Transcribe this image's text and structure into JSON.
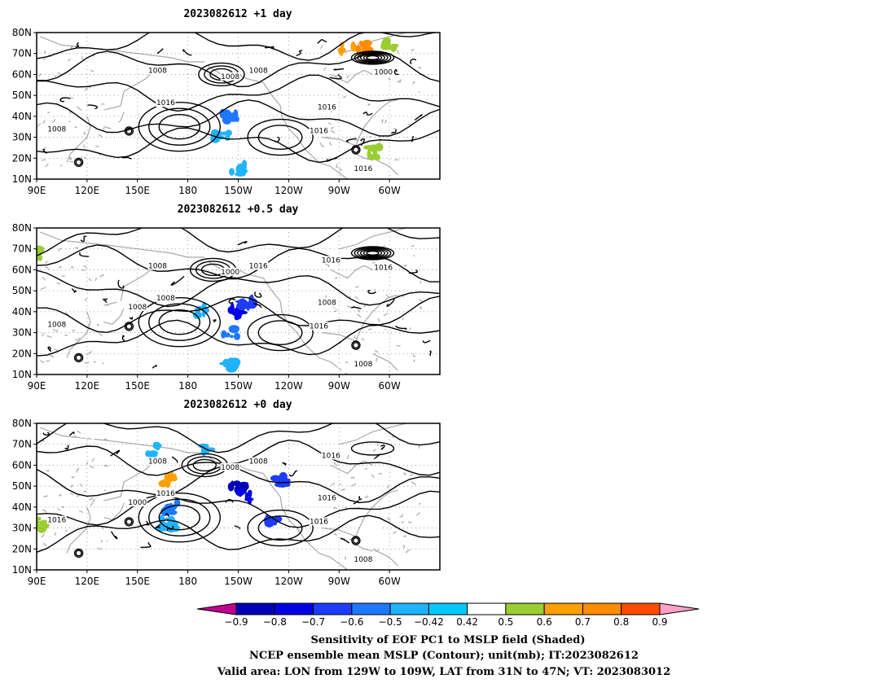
{
  "panels": [
    {
      "title": "2023082612  +1 day",
      "contour_labels": [
        "1008",
        "1008",
        "1016",
        "1000",
        "1016",
        "1016",
        "1008",
        "1008",
        "1016"
      ],
      "shading": [
        {
          "lon": -155,
          "lat": 40,
          "value": -0.5
        },
        {
          "lon": -160,
          "lat": 30,
          "value": -0.45
        },
        {
          "lon": -150,
          "lat": 15,
          "value": -0.45
        },
        {
          "lon": -155,
          "lat": 60,
          "value": 0.5
        },
        {
          "lon": -85,
          "lat": 72,
          "value": 0.7
        },
        {
          "lon": -75,
          "lat": 73,
          "value": 0.8
        },
        {
          "lon": -60,
          "lat": 75,
          "value": 0.6
        },
        {
          "lon": -50,
          "lat": 74,
          "value": 0.5
        },
        {
          "lon": -70,
          "lat": 23,
          "value": 0.6
        },
        {
          "lon": 140,
          "lat": 35,
          "value": 0.5
        }
      ]
    },
    {
      "title": "2023082612  +0.5 day",
      "contour_labels": [
        "1008",
        "1016",
        "1008",
        "1016",
        "1000",
        "1016",
        "1008",
        "1016",
        "1008",
        "1008",
        "1008"
      ],
      "shading": [
        {
          "lon": -150,
          "lat": 40,
          "value": -0.7
        },
        {
          "lon": -145,
          "lat": 45,
          "value": -0.6
        },
        {
          "lon": -155,
          "lat": 30,
          "value": -0.5
        },
        {
          "lon": -155,
          "lat": 15,
          "value": -0.45
        },
        {
          "lon": -170,
          "lat": 40,
          "value": -0.45
        },
        {
          "lon": 92,
          "lat": 68,
          "value": 0.6
        },
        {
          "lon": -75,
          "lat": 20,
          "value": 0.5
        },
        {
          "lon": -85,
          "lat": 12,
          "value": 0.5
        },
        {
          "lon": 140,
          "lat": 42,
          "value": 0.5
        }
      ]
    },
    {
      "title": "2023082612  +0 day",
      "contour_labels": [
        "1016",
        "1016",
        "1008",
        "1008",
        "1008",
        "1016",
        "1000",
        "1008",
        "1016",
        "1016"
      ],
      "shading": [
        {
          "lon": -150,
          "lat": 50,
          "value": -0.8
        },
        {
          "lon": -145,
          "lat": 45,
          "value": -0.7
        },
        {
          "lon": -130,
          "lat": 33,
          "value": -0.6
        },
        {
          "lon": -125,
          "lat": 52,
          "value": -0.6
        },
        {
          "lon": 170,
          "lat": 40,
          "value": -0.5
        },
        {
          "lon": 168,
          "lat": 32,
          "value": -0.45
        },
        {
          "lon": 160,
          "lat": 67,
          "value": -0.45
        },
        {
          "lon": -170,
          "lat": 68,
          "value": -0.45
        },
        {
          "lon": 168,
          "lat": 53,
          "value": 0.7
        },
        {
          "lon": 120,
          "lat": 76,
          "value": 0.5
        },
        {
          "lon": -70,
          "lat": 28,
          "value": 0.5
        },
        {
          "lon": 92,
          "lat": 32,
          "value": 0.6
        }
      ]
    }
  ],
  "axes": {
    "lon_ticks": [
      "90E",
      "120E",
      "150E",
      "180",
      "150W",
      "120W",
      "90W",
      "60W"
    ],
    "lat_ticks": [
      "80N",
      "70N",
      "60N",
      "50N",
      "40N",
      "30N",
      "20N",
      "10N"
    ]
  },
  "colorbar": {
    "tick_labels": [
      "−0.9",
      "−0.8",
      "−0.7",
      "−0.6",
      "−0.5",
      "−0.42",
      "0.42",
      "0.5",
      "0.6",
      "0.7",
      "0.8",
      "0.9"
    ],
    "colors": [
      "#c0008f",
      "#0000b4",
      "#0000e6",
      "#1e3cff",
      "#1e78ff",
      "#1eb4ff",
      "#00c8ff",
      "#ffffff",
      "#9acd32",
      "#ffa000",
      "#ff8c00",
      "#ff4b00",
      "#ff1e00",
      "#ffa0c8"
    ]
  },
  "captions": {
    "line1": "Sensitivity of EOF PC1 to MSLP field (Shaded)",
    "line2": "NCEP ensemble mean MSLP (Contour); unit(mb); IT:2023082612",
    "line3": "Valid area: LON from 129W to 109W, LAT from 31N to 47N; VT: 2023083012"
  }
}
